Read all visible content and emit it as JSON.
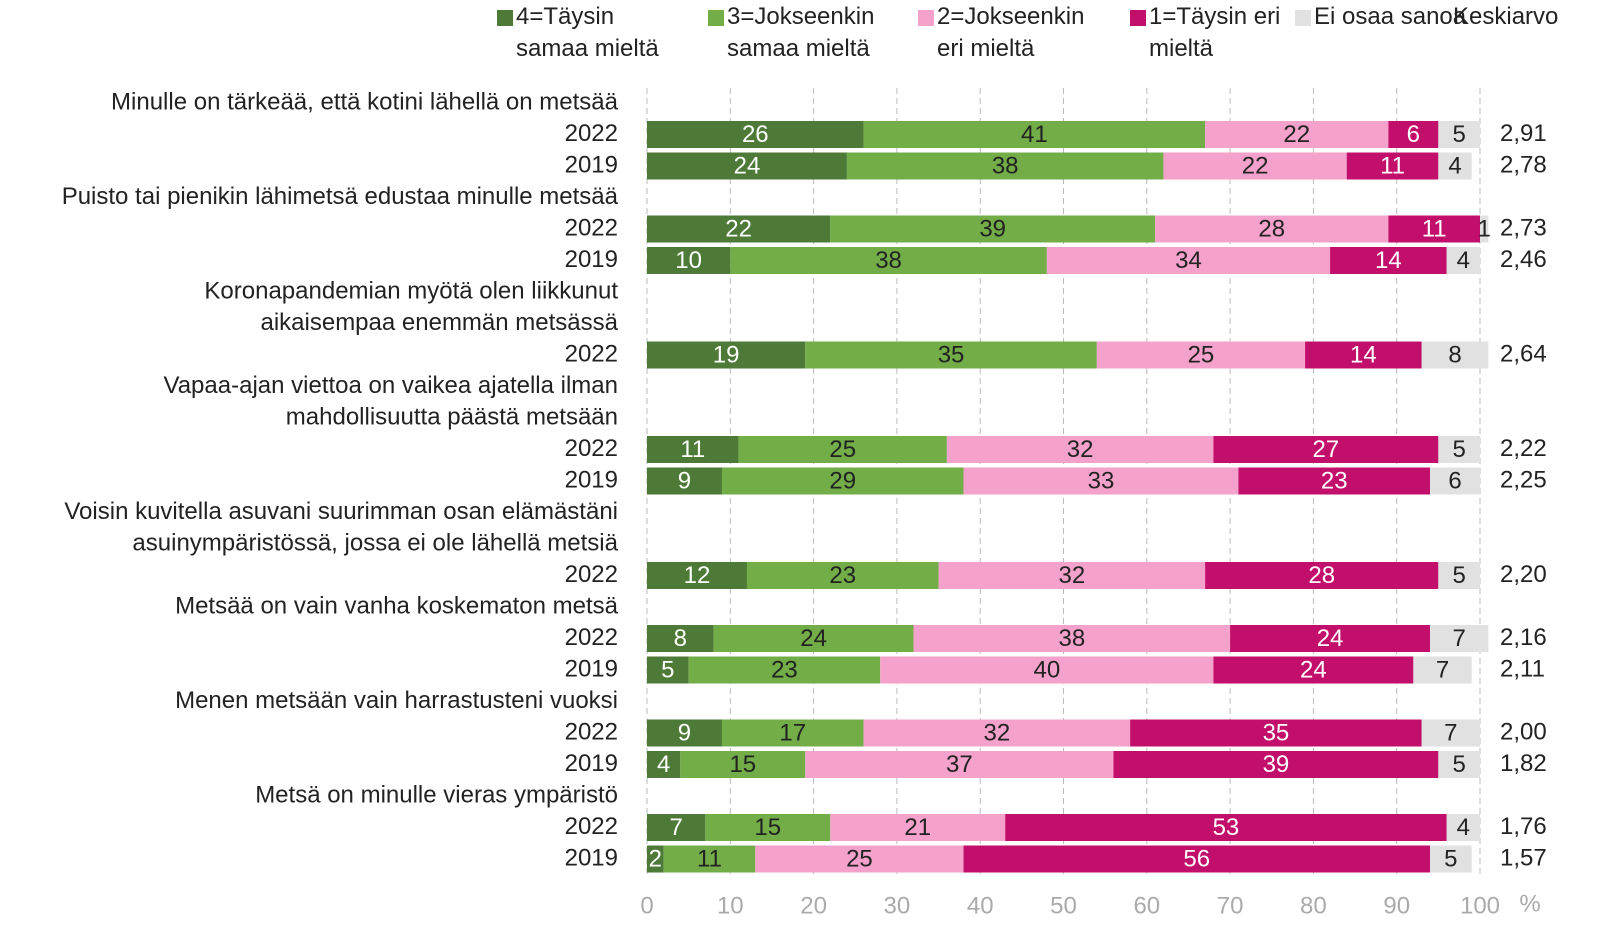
{
  "chart_data": {
    "type": "stacked_bar_horizontal",
    "series": [
      {
        "name": "4=Täysin samaa mieltä",
        "color": "#4d7a37",
        "label_color": "#ffffff"
      },
      {
        "name": "3=Jokseenkin samaa mieltä",
        "color": "#72ad48",
        "label_color": "#222222"
      },
      {
        "name": "2=Jokseenkin eri mieltä",
        "color": "#f4a2cb",
        "label_color": "#222222"
      },
      {
        "name": "1=Täysin eri mieltä",
        "color": "#c30f6c",
        "label_color": "#ffffff"
      },
      {
        "name": "Ei osaa sanoa",
        "color": "#e1e1e1",
        "label_color": "#222222"
      }
    ],
    "mean_title": "Keskiarvo",
    "groups": [
      {
        "label": [
          "Minulle on tärkeää, että kotini lähellä on metsää"
        ],
        "rows": [
          {
            "year": "2022",
            "values": [
              26,
              41,
              22,
              6,
              5
            ],
            "mean": 2.91,
            "mean_label": "2,91"
          },
          {
            "year": "2019",
            "values": [
              24,
              38,
              22,
              11,
              4
            ],
            "mean": 2.78,
            "mean_label": "2,78"
          }
        ]
      },
      {
        "label": [
          "Puisto tai pienikin lähimetsä edustaa minulle metsää"
        ],
        "rows": [
          {
            "year": "2022",
            "values": [
              22,
              39,
              28,
              11,
              1
            ],
            "mean": 2.73,
            "mean_label": "2,73"
          },
          {
            "year": "2019",
            "values": [
              10,
              38,
              34,
              14,
              4
            ],
            "mean": 2.46,
            "mean_label": "2,46"
          }
        ]
      },
      {
        "label": [
          "Koronapandemian myötä olen liikkunut",
          "aikaisempaa enemmän metsässä"
        ],
        "rows": [
          {
            "year": "2022",
            "values": [
              19,
              35,
              25,
              14,
              8
            ],
            "mean": 2.64,
            "mean_label": "2,64"
          }
        ]
      },
      {
        "label": [
          "Vapaa-ajan viettoa on vaikea ajatella ilman",
          "mahdollisuutta päästä metsään"
        ],
        "rows": [
          {
            "year": "2022",
            "values": [
              11,
              25,
              32,
              27,
              5
            ],
            "mean": 2.22,
            "mean_label": "2,22"
          },
          {
            "year": "2019",
            "values": [
              9,
              29,
              33,
              23,
              6
            ],
            "mean": 2.25,
            "mean_label": "2,25"
          }
        ]
      },
      {
        "label": [
          "Voisin kuvitella asuvani suurimman osan elämästäni",
          "asuinympäristössä, jossa ei ole lähellä metsiä"
        ],
        "rows": [
          {
            "year": "2022",
            "values": [
              12,
              23,
              32,
              28,
              5
            ],
            "mean": 2.2,
            "mean_label": "2,20"
          }
        ]
      },
      {
        "label": [
          "Metsää on vain vanha koskematon metsä"
        ],
        "rows": [
          {
            "year": "2022",
            "values": [
              8,
              24,
              38,
              24,
              7
            ],
            "mean": 2.16,
            "mean_label": "2,16"
          },
          {
            "year": "2019",
            "values": [
              5,
              23,
              40,
              24,
              7
            ],
            "mean": 2.11,
            "mean_label": "2,11"
          }
        ]
      },
      {
        "label": [
          "Menen metsään vain harrastusteni vuoksi"
        ],
        "rows": [
          {
            "year": "2022",
            "values": [
              9,
              17,
              32,
              35,
              7
            ],
            "mean": 2.0,
            "mean_label": "2,00"
          },
          {
            "year": "2019",
            "values": [
              4,
              15,
              37,
              39,
              5
            ],
            "mean": 1.82,
            "mean_label": "1,82"
          }
        ]
      },
      {
        "label": [
          "Metsä on minulle vieras ympäristö"
        ],
        "rows": [
          {
            "year": "2022",
            "values": [
              7,
              15,
              21,
              53,
              4
            ],
            "mean": 1.76,
            "mean_label": "1,76"
          },
          {
            "year": "2019",
            "values": [
              2,
              11,
              25,
              56,
              5
            ],
            "mean": 1.57,
            "mean_label": "1,57"
          }
        ]
      }
    ],
    "xlim": [
      0,
      100
    ],
    "xticks": [
      0,
      10,
      20,
      30,
      40,
      50,
      60,
      70,
      80,
      90,
      100
    ],
    "x_label": "%",
    "grid": true
  }
}
